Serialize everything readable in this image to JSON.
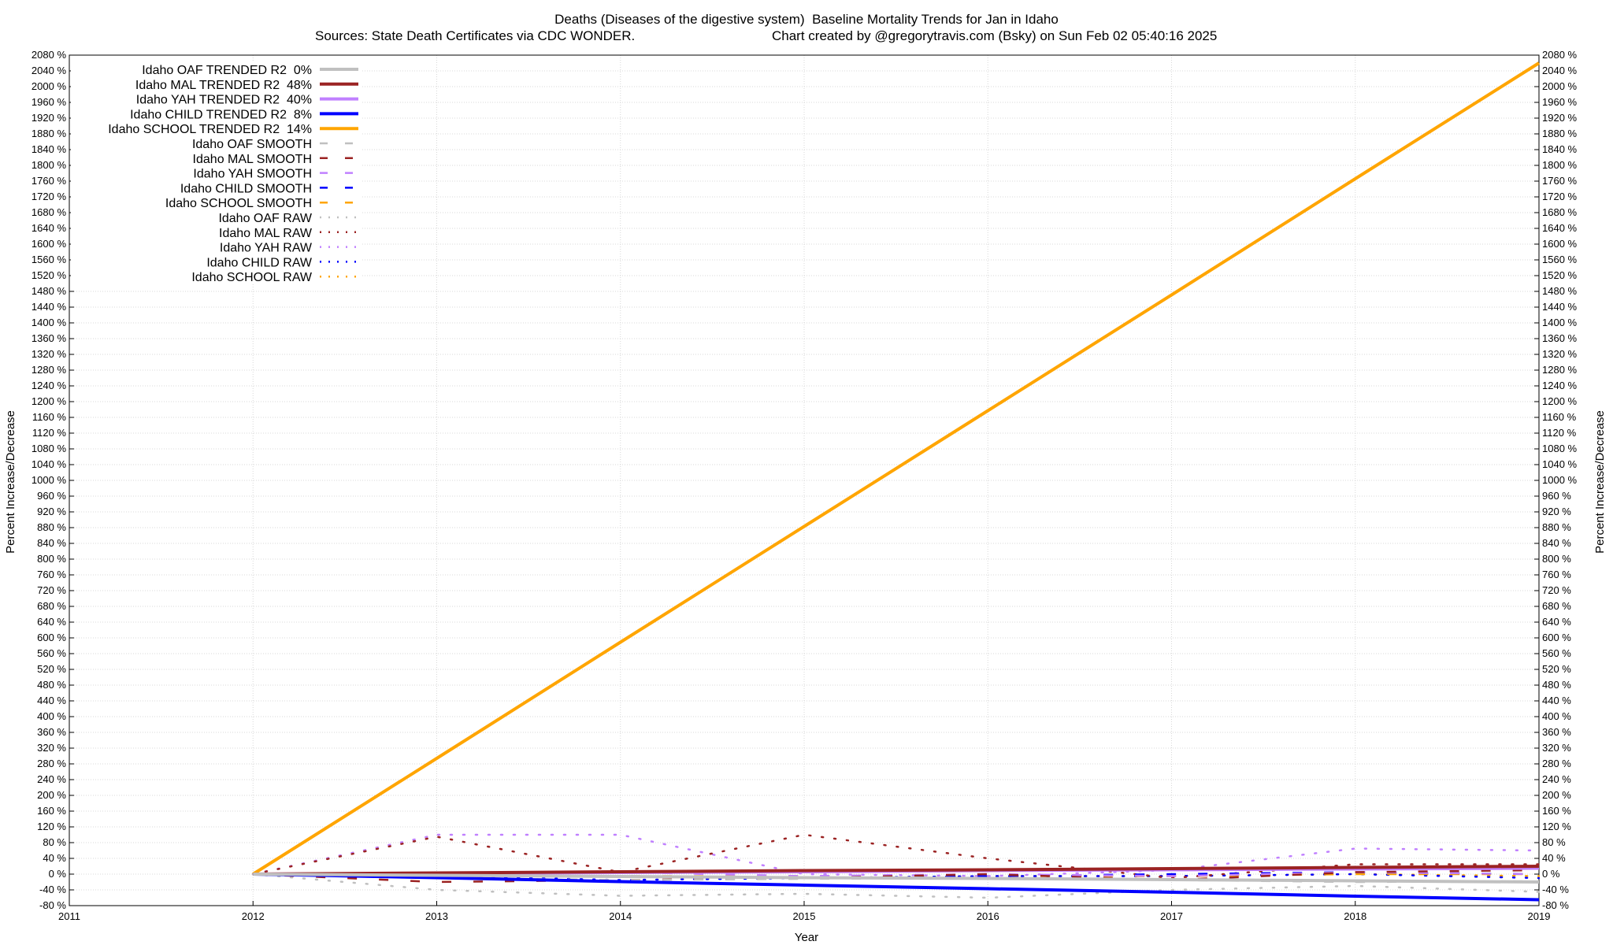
{
  "chart_data": {
    "type": "line",
    "title": "Deaths (Diseases of the digestive system)  Baseline Mortality Trends for Jan in Idaho",
    "subtitle": "Sources: State Death Certificates via CDC WONDER.",
    "credit": "Chart created by @gregorytravis.com (Bsky) on Sun Feb 02 05:40:16 2025",
    "xlabel": "Year",
    "ylabel": "Percent Increase/Decrease",
    "y2label": "Percent Increase/Decrease",
    "x": [
      2012,
      2013,
      2014,
      2015,
      2016,
      2017,
      2018,
      2019
    ],
    "xlim": [
      2011,
      2019
    ],
    "xticks": [
      2011,
      2012,
      2013,
      2014,
      2015,
      2016,
      2017,
      2018,
      2019
    ],
    "ylim": [
      -80,
      2080
    ],
    "yticks": [
      {
        "value": -80,
        "label": "-80 %"
      },
      {
        "value": -40,
        "label": "-40 %"
      },
      {
        "value": 0,
        "label": "0 %"
      },
      {
        "value": 40,
        "label": "40 %"
      },
      {
        "value": 80,
        "label": "80 %"
      },
      {
        "value": 120,
        "label": "120 %"
      },
      {
        "value": 160,
        "label": "160 %"
      },
      {
        "value": 200,
        "label": "200 %"
      },
      {
        "value": 240,
        "label": "240 %"
      },
      {
        "value": 280,
        "label": "280 %"
      },
      {
        "value": 320,
        "label": "320 %"
      },
      {
        "value": 360,
        "label": "360 %"
      },
      {
        "value": 400,
        "label": "400 %"
      },
      {
        "value": 440,
        "label": "440 %"
      },
      {
        "value": 480,
        "label": "480 %"
      },
      {
        "value": 520,
        "label": "520 %"
      },
      {
        "value": 560,
        "label": "560 %"
      },
      {
        "value": 600,
        "label": "600 %"
      },
      {
        "value": 640,
        "label": "640 %"
      },
      {
        "value": 680,
        "label": "680 %"
      },
      {
        "value": 720,
        "label": "720 %"
      },
      {
        "value": 760,
        "label": "760 %"
      },
      {
        "value": 800,
        "label": "800 %"
      },
      {
        "value": 840,
        "label": "840 %"
      },
      {
        "value": 880,
        "label": "880 %"
      },
      {
        "value": 920,
        "label": "920 %"
      },
      {
        "value": 960,
        "label": "960 %"
      },
      {
        "value": 1000,
        "label": "1000 %"
      },
      {
        "value": 1040,
        "label": "1040 %"
      },
      {
        "value": 1080,
        "label": "1080 %"
      },
      {
        "value": 1120,
        "label": "1120 %"
      },
      {
        "value": 1160,
        "label": "1160 %"
      },
      {
        "value": 1200,
        "label": "1200 %"
      },
      {
        "value": 1240,
        "label": "1240 %"
      },
      {
        "value": 1280,
        "label": "1280 %"
      },
      {
        "value": 1320,
        "label": "1320 %"
      },
      {
        "value": 1360,
        "label": "1360 %"
      },
      {
        "value": 1400,
        "label": "1400 %"
      },
      {
        "value": 1440,
        "label": "1440 %"
      },
      {
        "value": 1480,
        "label": "1480 %"
      },
      {
        "value": 1520,
        "label": "1520 %"
      },
      {
        "value": 1560,
        "label": "1560 %"
      },
      {
        "value": 1600,
        "label": "1600 %"
      },
      {
        "value": 1640,
        "label": "1640 %"
      },
      {
        "value": 1680,
        "label": "1680 %"
      },
      {
        "value": 1720,
        "label": "1720 %"
      },
      {
        "value": 1760,
        "label": "1760 %"
      },
      {
        "value": 1800,
        "label": "1800 %"
      },
      {
        "value": 1840,
        "label": "1840 %"
      },
      {
        "value": 1880,
        "label": "1880 %"
      },
      {
        "value": 1920,
        "label": "1920 %"
      },
      {
        "value": 1960,
        "label": "1960 %"
      },
      {
        "value": 2000,
        "label": "2000 %"
      },
      {
        "value": 2040,
        "label": "2040 %"
      },
      {
        "value": 2080,
        "label": "2080 %"
      }
    ],
    "grid": true,
    "legend": "upper left",
    "series": [
      {
        "name": "Idaho OAF TRENDED R2  0%",
        "color": "#c0c0c0",
        "style": "solid",
        "values": [
          0,
          -3,
          -6,
          -9,
          -11,
          -14,
          -17,
          -20
        ]
      },
      {
        "name": "Idaho MAL TRENDED R2  48%",
        "color": "#9b2323",
        "style": "solid",
        "values": [
          0,
          3,
          6,
          9,
          11,
          14,
          17,
          20
        ]
      },
      {
        "name": "Idaho YAH TRENDED R2  40%",
        "color": "#c080ff",
        "style": "solid",
        "values": [
          0,
          2,
          4,
          6,
          9,
          11,
          13,
          15
        ]
      },
      {
        "name": "Idaho CHILD TRENDED R2  8%",
        "color": "#0000ff",
        "style": "solid",
        "values": [
          0,
          -9,
          -19,
          -28,
          -37,
          -46,
          -56,
          -65
        ]
      },
      {
        "name": "Idaho SCHOOL TRENDED R2  14%",
        "color": "#ffa500",
        "style": "solid",
        "values": [
          0,
          294,
          589,
          883,
          1177,
          1471,
          1766,
          2060
        ]
      },
      {
        "name": "Idaho OAF SMOOTH",
        "color": "#c0c0c0",
        "style": "dash",
        "values": [
          0,
          -10,
          -15,
          -12,
          -10,
          -15,
          -20,
          -18
        ]
      },
      {
        "name": "Idaho MAL SMOOTH",
        "color": "#9b2323",
        "style": "dash",
        "values": [
          0,
          -20,
          -15,
          -10,
          0,
          -15,
          5,
          10
        ]
      },
      {
        "name": "Idaho YAH SMOOTH",
        "color": "#c080ff",
        "style": "dash",
        "values": [
          0,
          -5,
          5,
          -5,
          0,
          -5,
          5,
          0
        ]
      },
      {
        "name": "Idaho CHILD SMOOTH",
        "color": "#0000ff",
        "style": "dash",
        "values": [
          0,
          -5,
          -5,
          -10,
          -5,
          0,
          5,
          0
        ]
      },
      {
        "name": "Idaho SCHOOL SMOOTH",
        "color": "#ffa500",
        "style": "dash",
        "values": [
          0,
          -5,
          -5,
          -5,
          -5,
          -5,
          0,
          0
        ]
      },
      {
        "name": "Idaho OAF RAW",
        "color": "#c0c0c0",
        "style": "dot",
        "values": [
          0,
          -40,
          -55,
          -50,
          -60,
          -40,
          -30,
          -45
        ]
      },
      {
        "name": "Idaho MAL RAW",
        "color": "#9b2323",
        "style": "dot",
        "values": [
          0,
          95,
          5,
          100,
          40,
          -10,
          25,
          25
        ]
      },
      {
        "name": "Idaho YAH RAW",
        "color": "#c080ff",
        "style": "dot",
        "values": [
          0,
          100,
          100,
          0,
          -5,
          10,
          65,
          60
        ]
      },
      {
        "name": "Idaho CHILD RAW",
        "color": "#0000ff",
        "style": "dot",
        "values": [
          0,
          -5,
          -15,
          -10,
          -5,
          -5,
          0,
          -10
        ]
      },
      {
        "name": "Idaho SCHOOL RAW",
        "color": "#ffa500",
        "style": "dot",
        "values": [
          0,
          -5,
          -5,
          -10,
          -5,
          -5,
          0,
          -5
        ]
      }
    ]
  }
}
